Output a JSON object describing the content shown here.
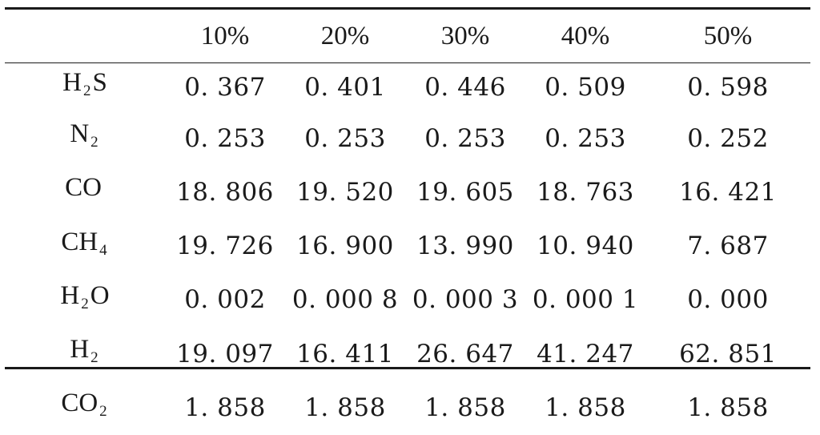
{
  "table": {
    "columns": [
      "",
      "10%",
      "20%",
      "30%",
      "40%",
      "50%"
    ],
    "rows": [
      {
        "gas": {
          "base": "H",
          "sub": "2",
          "tail": "S"
        },
        "values": [
          "0. 367",
          "0. 401",
          "0. 446",
          "0. 509",
          "0. 598"
        ]
      },
      {
        "gas": {
          "base": "N",
          "sub": "2",
          "tail": ""
        },
        "values": [
          "0. 253",
          "0. 253",
          "0. 253",
          "0. 253",
          "0. 252"
        ]
      },
      {
        "gas": {
          "base": "CO",
          "sub": "",
          "tail": ""
        },
        "values": [
          "18. 806",
          "19. 520",
          "19. 605",
          "18. 763",
          "16. 421"
        ]
      },
      {
        "gas": {
          "base": "CH",
          "sub": "4",
          "tail": ""
        },
        "values": [
          "19. 726",
          "16. 900",
          "13. 990",
          "10. 940",
          "7. 687"
        ]
      },
      {
        "gas": {
          "base": "H",
          "sub": "2",
          "tail": "O"
        },
        "values": [
          "0. 002",
          "0. 000 8",
          "0. 000 3",
          "0. 000 1",
          "0. 000"
        ]
      },
      {
        "gas": {
          "base": "H",
          "sub": "2",
          "tail": ""
        },
        "values": [
          "19. 097",
          "16. 411",
          "26. 647",
          "41. 247",
          "62. 851"
        ]
      },
      {
        "gas": {
          "base": "CO",
          "sub": "2",
          "tail": ""
        },
        "values": [
          "1. 858",
          "1. 858",
          "1. 858",
          "1. 858",
          "1. 858"
        ]
      }
    ]
  }
}
